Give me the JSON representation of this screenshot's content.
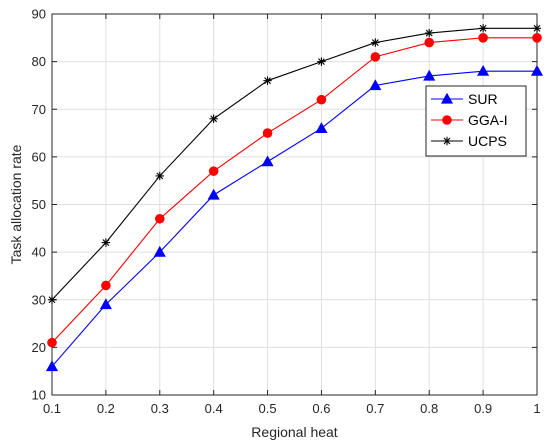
{
  "chart_data": {
    "type": "line",
    "xlabel": "Regional heat",
    "ylabel": "Task allocation rate",
    "x": [
      0.1,
      0.2,
      0.3,
      0.4,
      0.5,
      0.6,
      0.7,
      0.8,
      0.9,
      1.0
    ],
    "xlim": [
      0.1,
      1.0
    ],
    "ylim": [
      10,
      90
    ],
    "xticks": [
      "0.1",
      "0.2",
      "0.3",
      "0.4",
      "0.5",
      "0.6",
      "0.7",
      "0.8",
      "0.9",
      "1"
    ],
    "yticks": [
      "10",
      "20",
      "30",
      "40",
      "50",
      "60",
      "70",
      "80",
      "90"
    ],
    "grid": true,
    "legend_position": "right",
    "series": [
      {
        "name": "SUR",
        "color": "#0000ff",
        "marker": "triangle",
        "values": [
          16,
          29,
          40,
          52,
          59,
          66,
          75,
          77,
          78,
          78
        ]
      },
      {
        "name": "GGA-I",
        "color": "#ff0000",
        "marker": "circle",
        "values": [
          21,
          33,
          47,
          57,
          65,
          72,
          81,
          84,
          85,
          85
        ]
      },
      {
        "name": "UCPS",
        "color": "#000000",
        "marker": "asterisk",
        "values": [
          30,
          42,
          56,
          68,
          76,
          80,
          84,
          86,
          87,
          87
        ]
      }
    ]
  }
}
